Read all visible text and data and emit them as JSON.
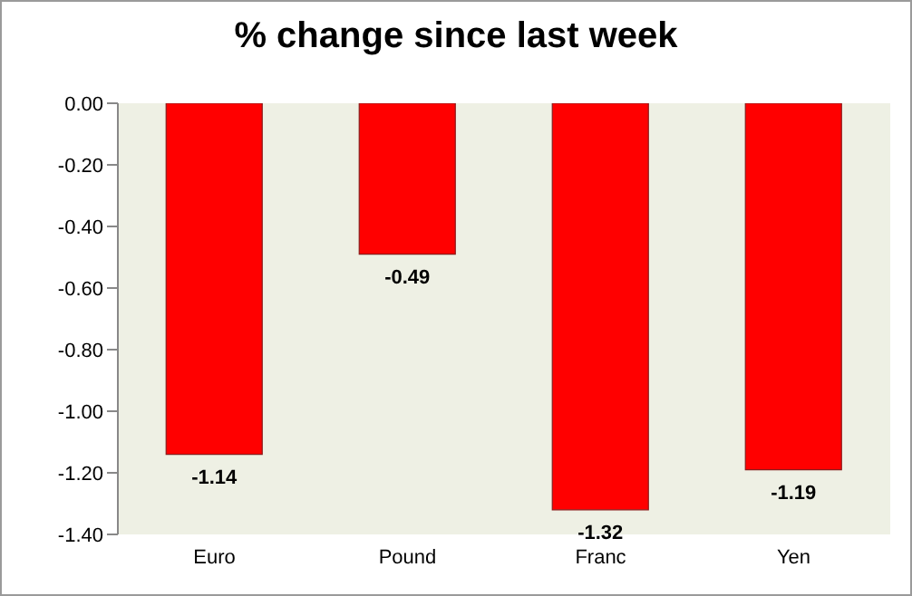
{
  "chart_data": {
    "type": "bar",
    "title": "% change since last week",
    "categories": [
      "Euro",
      "Pound",
      "Franc",
      "Yen"
    ],
    "values": [
      -1.14,
      -0.49,
      -1.32,
      -1.19
    ],
    "color": "#ff0000",
    "ylim": [
      -1.4,
      0
    ],
    "yticks": [
      {
        "value": 0,
        "label": "0.00"
      },
      {
        "value": -0.2,
        "label": "-0.20"
      },
      {
        "value": -0.4,
        "label": "-0.40"
      },
      {
        "value": -0.6,
        "label": "-0.60"
      },
      {
        "value": -0.8,
        "label": "-0.80"
      },
      {
        "value": -1,
        "label": "-1.00"
      },
      {
        "value": -1.2,
        "label": "-1.20"
      },
      {
        "value": -1.4,
        "label": "-1.40"
      }
    ],
    "data_labels": true,
    "grid": false,
    "legend": false
  }
}
